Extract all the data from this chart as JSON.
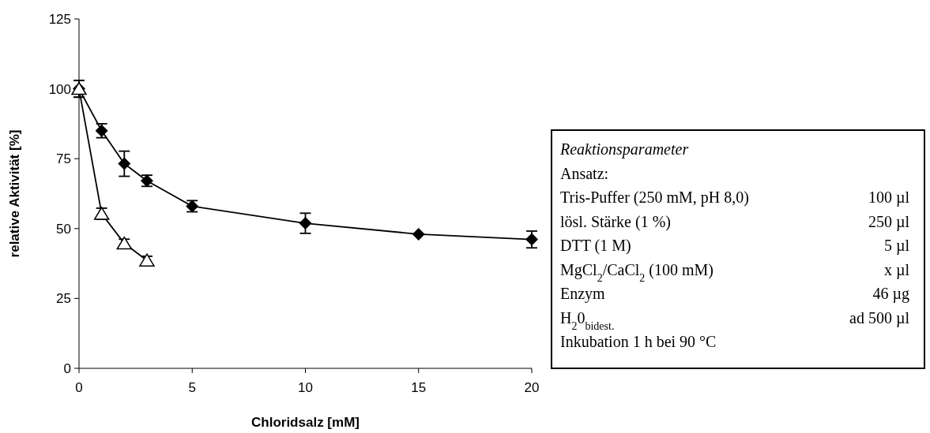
{
  "chart_data": {
    "type": "line",
    "xlabel": "Chloridsalz [mM]",
    "ylabel": "relative Aktivität [%]",
    "xlim": [
      0,
      20
    ],
    "xticks": [
      0,
      5,
      10,
      15,
      20
    ],
    "ylim": [
      0,
      125
    ],
    "yticks": [
      0,
      25,
      50,
      75,
      100,
      125
    ],
    "grid": false,
    "series": [
      {
        "color": "#000000",
        "marker": "diamond",
        "x": [
          0,
          1,
          2,
          3,
          5,
          10,
          15,
          20
        ],
        "values": [
          100,
          85,
          73.2,
          67.1,
          58,
          51.9,
          48,
          46.1
        ],
        "errors": [
          3,
          2.5,
          4.5,
          2,
          2,
          3.6,
          null,
          3
        ]
      },
      {
        "color": "#000000",
        "marker": "triangle",
        "x": [
          0,
          1,
          2,
          3
        ],
        "values": [
          100,
          55.3,
          44.7,
          38.6
        ],
        "errors": [
          3,
          2,
          1.5,
          1.5
        ]
      }
    ],
    "annotations": [
      "Reaktionsparameter",
      "Ansatz:",
      "Tris-Puffer (250 mM, pH 8,0)",
      "100 µl",
      "lösl. Stärke (1 %)",
      "250 µl",
      "DTT (1 M)",
      "5 µl",
      "MgCl$_{2}$/CaCl$_{2}$ (100 mM)",
      "x µl",
      "Enzym",
      "46 µg",
      "H$_{2}$0$_{bidest.}$",
      "ad 500 µl",
      "Inkubation 1 h bei 90 °C"
    ]
  }
}
